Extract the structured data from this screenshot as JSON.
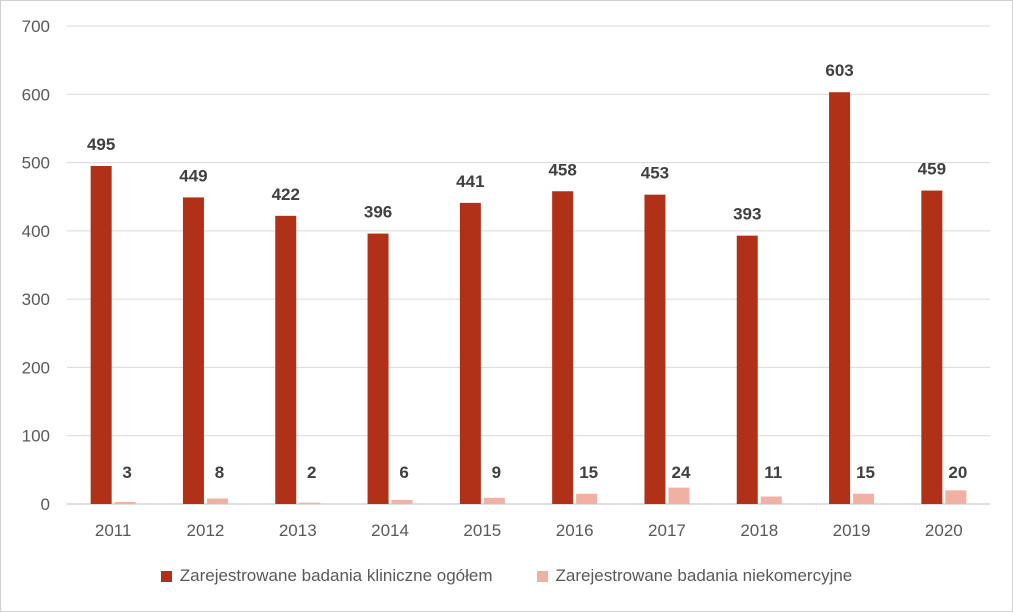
{
  "chart_data": {
    "type": "bar",
    "categories": [
      "2011",
      "2012",
      "2013",
      "2014",
      "2015",
      "2016",
      "2017",
      "2018",
      "2019",
      "2020"
    ],
    "series": [
      {
        "name": "Zarejestrowane badania kliniczne ogółem",
        "color": "#b03018",
        "values": [
          495,
          449,
          422,
          396,
          441,
          458,
          453,
          393,
          603,
          459
        ]
      },
      {
        "name": "Zarejestrowane badania niekomercyjne",
        "color": "#f0b0a4",
        "values": [
          3,
          8,
          2,
          6,
          9,
          15,
          24,
          11,
          15,
          20
        ]
      }
    ],
    "ylim": [
      0,
      700
    ],
    "yticks": [
      0,
      100,
      200,
      300,
      400,
      500,
      600,
      700
    ],
    "grid": true,
    "legend": "bottom",
    "title": "",
    "xlabel": "",
    "ylabel": ""
  }
}
